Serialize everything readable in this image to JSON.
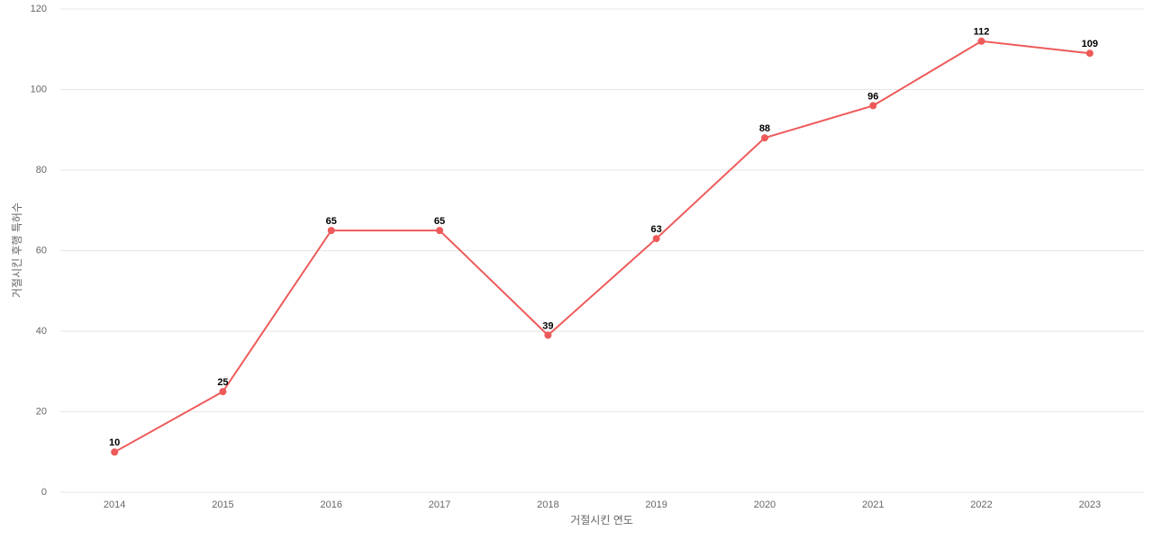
{
  "chart_data": {
    "type": "line",
    "x_label": "거절시킨 연도",
    "y_label": "거절시킨 후행 특허수",
    "categories": [
      "2014",
      "2015",
      "2016",
      "2017",
      "2018",
      "2019",
      "2020",
      "2021",
      "2022",
      "2023"
    ],
    "series": [
      {
        "name": "거절시킨 후행 특허수",
        "color": "#ee5a5a",
        "values": [
          10,
          25,
          65,
          65,
          39,
          63,
          88,
          96,
          112,
          109
        ]
      }
    ],
    "ylim": [
      0,
      120
    ],
    "yticks": [
      0,
      20,
      40,
      60,
      80,
      100,
      120
    ],
    "grid": true,
    "legend": false
  }
}
